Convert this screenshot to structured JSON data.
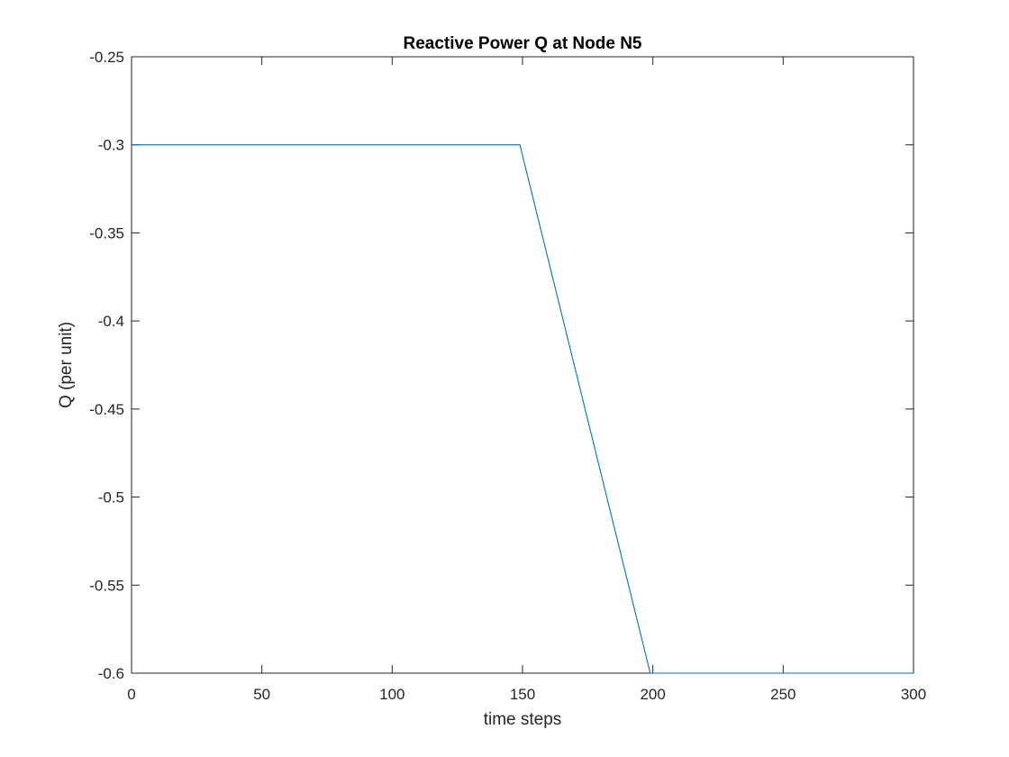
{
  "chart_data": {
    "type": "line",
    "title": "Reactive Power Q at Node N5",
    "xlabel": "time steps",
    "ylabel": "Q (per unit)",
    "xlim": [
      0,
      300
    ],
    "ylim": [
      -0.6,
      -0.25
    ],
    "xticks": [
      0,
      50,
      100,
      150,
      200,
      250,
      300
    ],
    "xtick_labels": [
      "0",
      "50",
      "100",
      "150",
      "200",
      "250",
      "300"
    ],
    "yticks": [
      -0.6,
      -0.55,
      -0.5,
      -0.45,
      -0.4,
      -0.35,
      -0.3,
      -0.25
    ],
    "ytick_labels": [
      "-0.6",
      "-0.55",
      "-0.5",
      "-0.45",
      "-0.4",
      "-0.35",
      "-0.3",
      "-0.25"
    ],
    "grid": false,
    "line_color": "#0072BD",
    "series": [
      {
        "x": [
          0,
          149,
          199,
          300
        ],
        "y": [
          -0.3,
          -0.3,
          -0.6,
          -0.6
        ]
      }
    ]
  }
}
